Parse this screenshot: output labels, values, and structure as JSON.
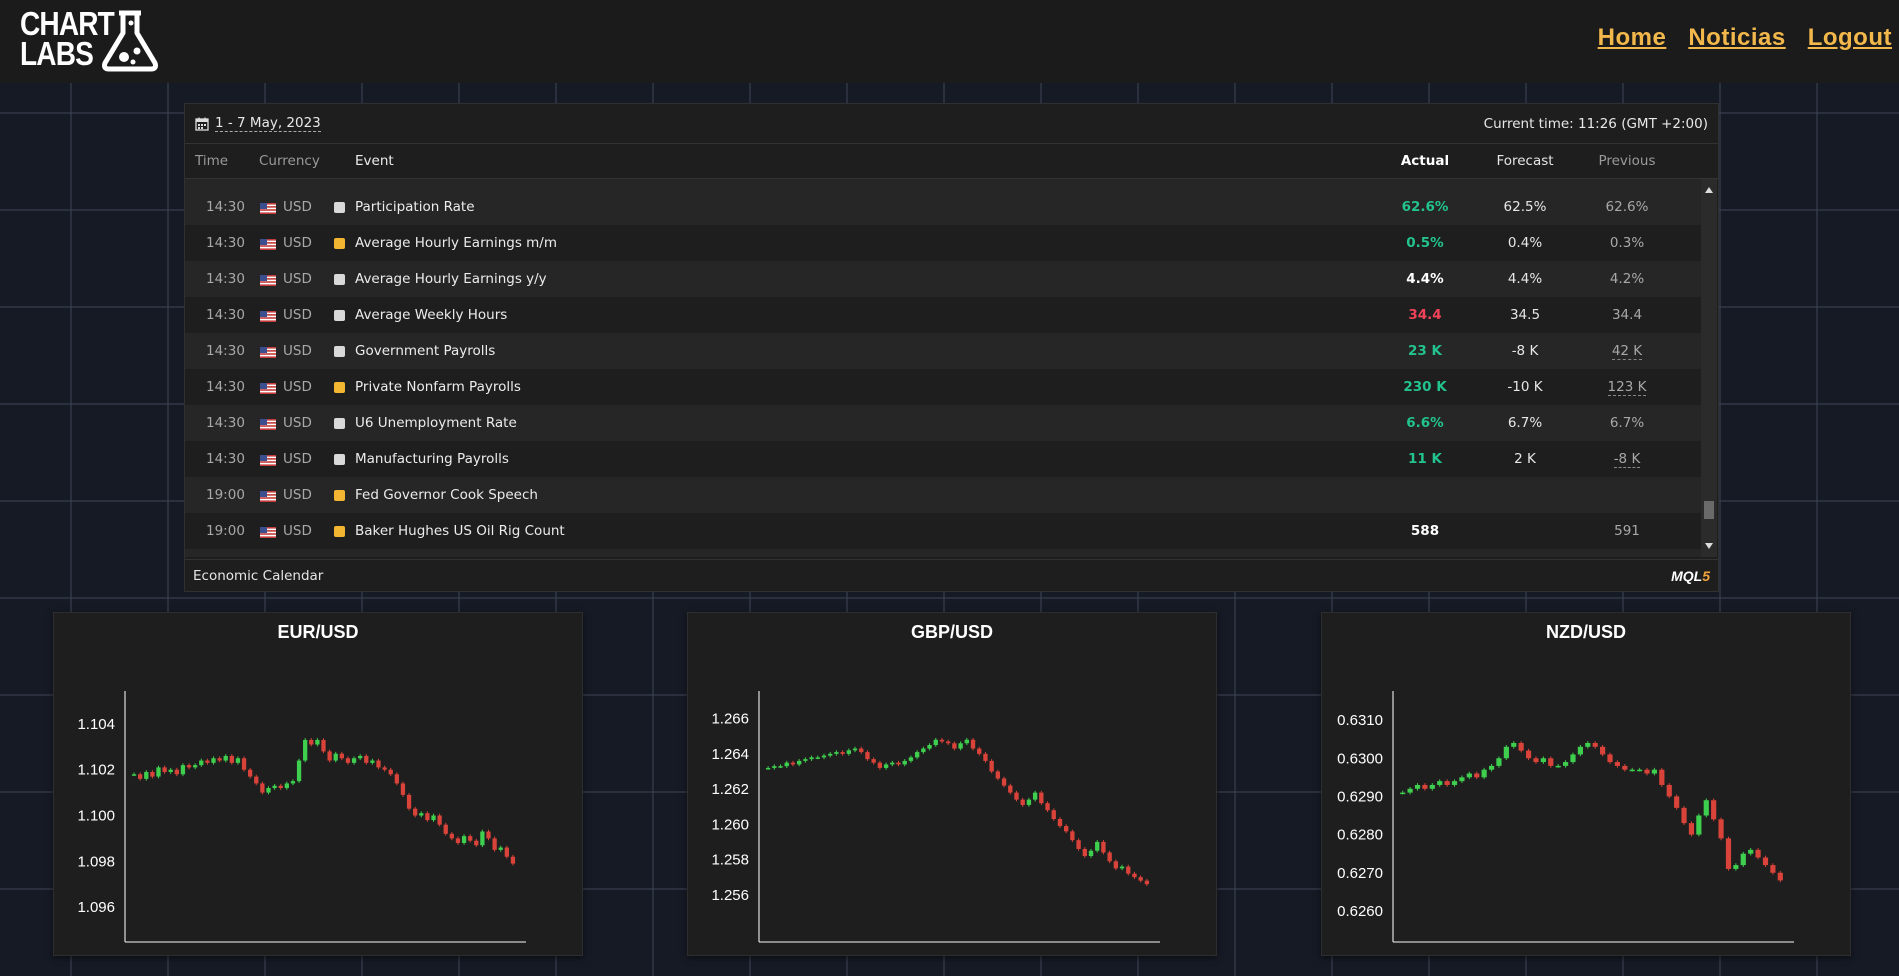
{
  "header": {
    "logo_line1": "CHART",
    "logo_line2": "LABS",
    "nav": [
      "Home",
      "Noticias",
      "Logout"
    ]
  },
  "calendar": {
    "date_range": "1 - 7 May, 2023",
    "current_time": "Current time: 11:26 (GMT +2:00)",
    "columns": {
      "time": "Time",
      "currency": "Currency",
      "event": "Event",
      "actual": "Actual",
      "forecast": "Forecast",
      "previous": "Previous"
    },
    "rows": [
      {
        "time": "14:30",
        "currency": "USD",
        "importance": "low",
        "event": "Participation Rate",
        "actual": "62.6%",
        "actual_color": "#22c38e",
        "forecast": "62.5%",
        "previous": "62.6%",
        "previous_revised": false
      },
      {
        "time": "14:30",
        "currency": "USD",
        "importance": "medium",
        "event": "Average Hourly Earnings m/m",
        "actual": "0.5%",
        "actual_color": "#22c38e",
        "forecast": "0.4%",
        "previous": "0.3%",
        "previous_revised": false
      },
      {
        "time": "14:30",
        "currency": "USD",
        "importance": "low",
        "event": "Average Hourly Earnings y/y",
        "actual": "4.4%",
        "actual_color": "#ffffff",
        "forecast": "4.4%",
        "previous": "4.2%",
        "previous_revised": false
      },
      {
        "time": "14:30",
        "currency": "USD",
        "importance": "low",
        "event": "Average Weekly Hours",
        "actual": "34.4",
        "actual_color": "#f0435a",
        "forecast": "34.5",
        "previous": "34.4",
        "previous_revised": false
      },
      {
        "time": "14:30",
        "currency": "USD",
        "importance": "low",
        "event": "Government Payrolls",
        "actual": "23 K",
        "actual_color": "#22c38e",
        "forecast": "-8 K",
        "previous": "42 K",
        "previous_revised": true
      },
      {
        "time": "14:30",
        "currency": "USD",
        "importance": "medium",
        "event": "Private Nonfarm Payrolls",
        "actual": "230 K",
        "actual_color": "#22c38e",
        "forecast": "-10 K",
        "previous": "123 K",
        "previous_revised": true
      },
      {
        "time": "14:30",
        "currency": "USD",
        "importance": "low",
        "event": "U6 Unemployment Rate",
        "actual": "6.6%",
        "actual_color": "#22c38e",
        "forecast": "6.7%",
        "previous": "6.7%",
        "previous_revised": false
      },
      {
        "time": "14:30",
        "currency": "USD",
        "importance": "low",
        "event": "Manufacturing Payrolls",
        "actual": "11 K",
        "actual_color": "#22c38e",
        "forecast": "2 K",
        "previous": "-8 K",
        "previous_revised": true
      },
      {
        "time": "19:00",
        "currency": "USD",
        "importance": "medium",
        "event": "Fed Governor Cook Speech",
        "actual": "",
        "actual_color": "#ffffff",
        "forecast": "",
        "previous": "",
        "previous_revised": false
      },
      {
        "time": "19:00",
        "currency": "USD",
        "importance": "medium",
        "event": "Baker Hughes US Oil Rig Count",
        "actual": "588",
        "actual_color": "#ffffff",
        "forecast": "",
        "previous": "591",
        "previous_revised": false
      }
    ],
    "importance_colors": {
      "low": "#d9d9d9",
      "medium": "#f2b632"
    },
    "footer_label": "Economic Calendar",
    "footer_brand_a": "MQL",
    "footer_brand_b": "5"
  },
  "chart_data": [
    {
      "type": "candlestick",
      "title": "EUR/USD",
      "yticks": [
        "1.104",
        "1.102",
        "1.100",
        "1.098",
        "1.096"
      ],
      "ylim": [
        1.095,
        1.105
      ],
      "up_color": "#3ecf4e",
      "down_color": "#d9433a",
      "close": [
        1.1018,
        1.1016,
        1.1019,
        1.1017,
        1.1021,
        1.1019,
        1.102,
        1.1018,
        1.1022,
        1.1021,
        1.1022,
        1.1024,
        1.1023,
        1.1025,
        1.1024,
        1.1026,
        1.1023,
        1.1025,
        1.102,
        1.1017,
        1.1014,
        1.101,
        1.1012,
        1.1013,
        1.1012,
        1.1014,
        1.1015,
        1.1024,
        1.1033,
        1.1031,
        1.1033,
        1.1028,
        1.1024,
        1.1027,
        1.1025,
        1.1023,
        1.1025,
        1.1026,
        1.1023,
        1.1024,
        1.1021,
        1.102,
        1.1018,
        1.1014,
        1.1009,
        1.1003,
        1.1,
        1.1001,
        1.0998,
        1.1,
        1.0996,
        1.0992,
        1.099,
        1.0988,
        1.0991,
        1.0989,
        1.0987,
        1.0993,
        1.099,
        1.0985,
        1.0986,
        1.0982,
        1.0979
      ]
    },
    {
      "type": "candlestick",
      "title": "GBP/USD",
      "yticks": [
        "1.266",
        "1.264",
        "1.262",
        "1.260",
        "1.258",
        "1.256"
      ],
      "ylim": [
        1.254,
        1.267
      ],
      "up_color": "#3ecf4e",
      "down_color": "#d9433a",
      "close": [
        1.2632,
        1.2633,
        1.2633,
        1.2635,
        1.2634,
        1.2636,
        1.2637,
        1.2638,
        1.2638,
        1.2639,
        1.264,
        1.2641,
        1.264,
        1.2642,
        1.2643,
        1.2641,
        1.2637,
        1.2635,
        1.2632,
        1.2634,
        1.2635,
        1.2634,
        1.2636,
        1.2638,
        1.2641,
        1.2643,
        1.2645,
        1.2648,
        1.2647,
        1.2646,
        1.2643,
        1.2646,
        1.2648,
        1.2643,
        1.264,
        1.2636,
        1.263,
        1.2626,
        1.2622,
        1.2618,
        1.2614,
        1.2611,
        1.2614,
        1.2618,
        1.2612,
        1.2608,
        1.2603,
        1.2599,
        1.2596,
        1.2591,
        1.2586,
        1.2582,
        1.2585,
        1.259,
        1.2584,
        1.2579,
        1.2575,
        1.2576,
        1.2572,
        1.257,
        1.2568,
        1.2566
      ]
    },
    {
      "type": "candlestick",
      "title": "NZD/USD",
      "yticks": [
        "0.6310",
        "0.6300",
        "0.6290",
        "0.6280",
        "0.6270",
        "0.6260"
      ],
      "ylim": [
        0.6255,
        0.6315
      ],
      "up_color": "#3ecf4e",
      "down_color": "#d9433a",
      "close": [
        0.6291,
        0.6292,
        0.6293,
        0.6292,
        0.6293,
        0.6294,
        0.6293,
        0.6294,
        0.6295,
        0.6296,
        0.6295,
        0.6297,
        0.6298,
        0.63,
        0.6303,
        0.6304,
        0.6302,
        0.63,
        0.6299,
        0.63,
        0.6298,
        0.6298,
        0.6299,
        0.6301,
        0.6303,
        0.6304,
        0.6303,
        0.6301,
        0.6299,
        0.6298,
        0.6297,
        0.6297,
        0.6297,
        0.6296,
        0.6297,
        0.6293,
        0.629,
        0.6287,
        0.6283,
        0.628,
        0.6285,
        0.6289,
        0.6284,
        0.6279,
        0.6271,
        0.6272,
        0.6275,
        0.6276,
        0.6274,
        0.6272,
        0.627,
        0.6268
      ]
    }
  ]
}
